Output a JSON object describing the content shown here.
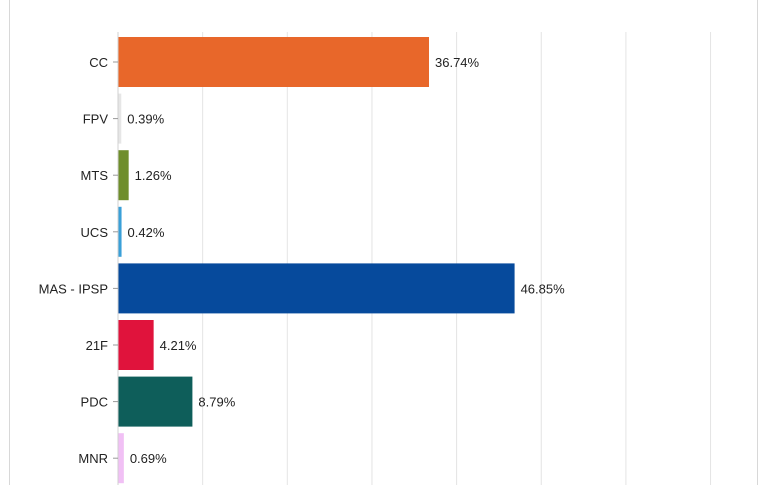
{
  "chart_data": {
    "type": "bar",
    "orientation": "horizontal",
    "title": "",
    "xlabel": "",
    "ylabel": "",
    "categories": [
      "CC",
      "FPV",
      "MTS",
      "UCS",
      "MAS - IPSP",
      "21F",
      "PDC",
      "MNR"
    ],
    "values": [
      36.74,
      0.39,
      1.26,
      0.42,
      46.85,
      4.21,
      8.79,
      0.69
    ],
    "value_labels": [
      "36.74%",
      "0.39%",
      "1.26%",
      "0.42%",
      "46.85%",
      "4.21%",
      "8.79%",
      "0.69%"
    ],
    "colors": [
      "#e8672a",
      "#e6e6e6",
      "#6f8e2c",
      "#3aa0d8",
      "#064a9c",
      "#e0133c",
      "#0e5e5a",
      "#f1c0f5"
    ],
    "xlim": [
      0,
      75
    ],
    "gridlines": true,
    "legend": "none"
  }
}
